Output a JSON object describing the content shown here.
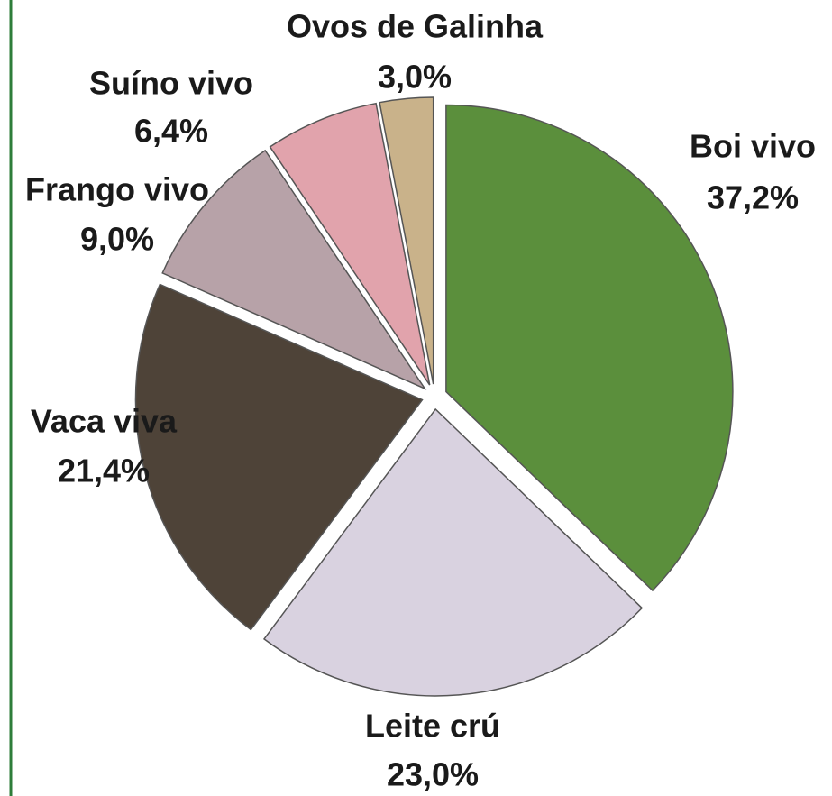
{
  "chart_data": {
    "type": "pie",
    "categories": [
      "Boi vivo",
      "Leite crú",
      "Vaca viva",
      "Frango vivo",
      "Suíno vivo",
      "Ovos de Galinha"
    ],
    "values": [
      37.2,
      23.0,
      21.4,
      9.0,
      6.4,
      3.0
    ],
    "value_labels": [
      "37,2%",
      "23,0%",
      "21,4%",
      "9,0%",
      "6,4%",
      "3,0%"
    ],
    "colors": [
      "#5b8f3c",
      "#d9d2e0",
      "#4e4338",
      "#b7a2a8",
      "#e1a3ac",
      "#c9b28a"
    ]
  }
}
